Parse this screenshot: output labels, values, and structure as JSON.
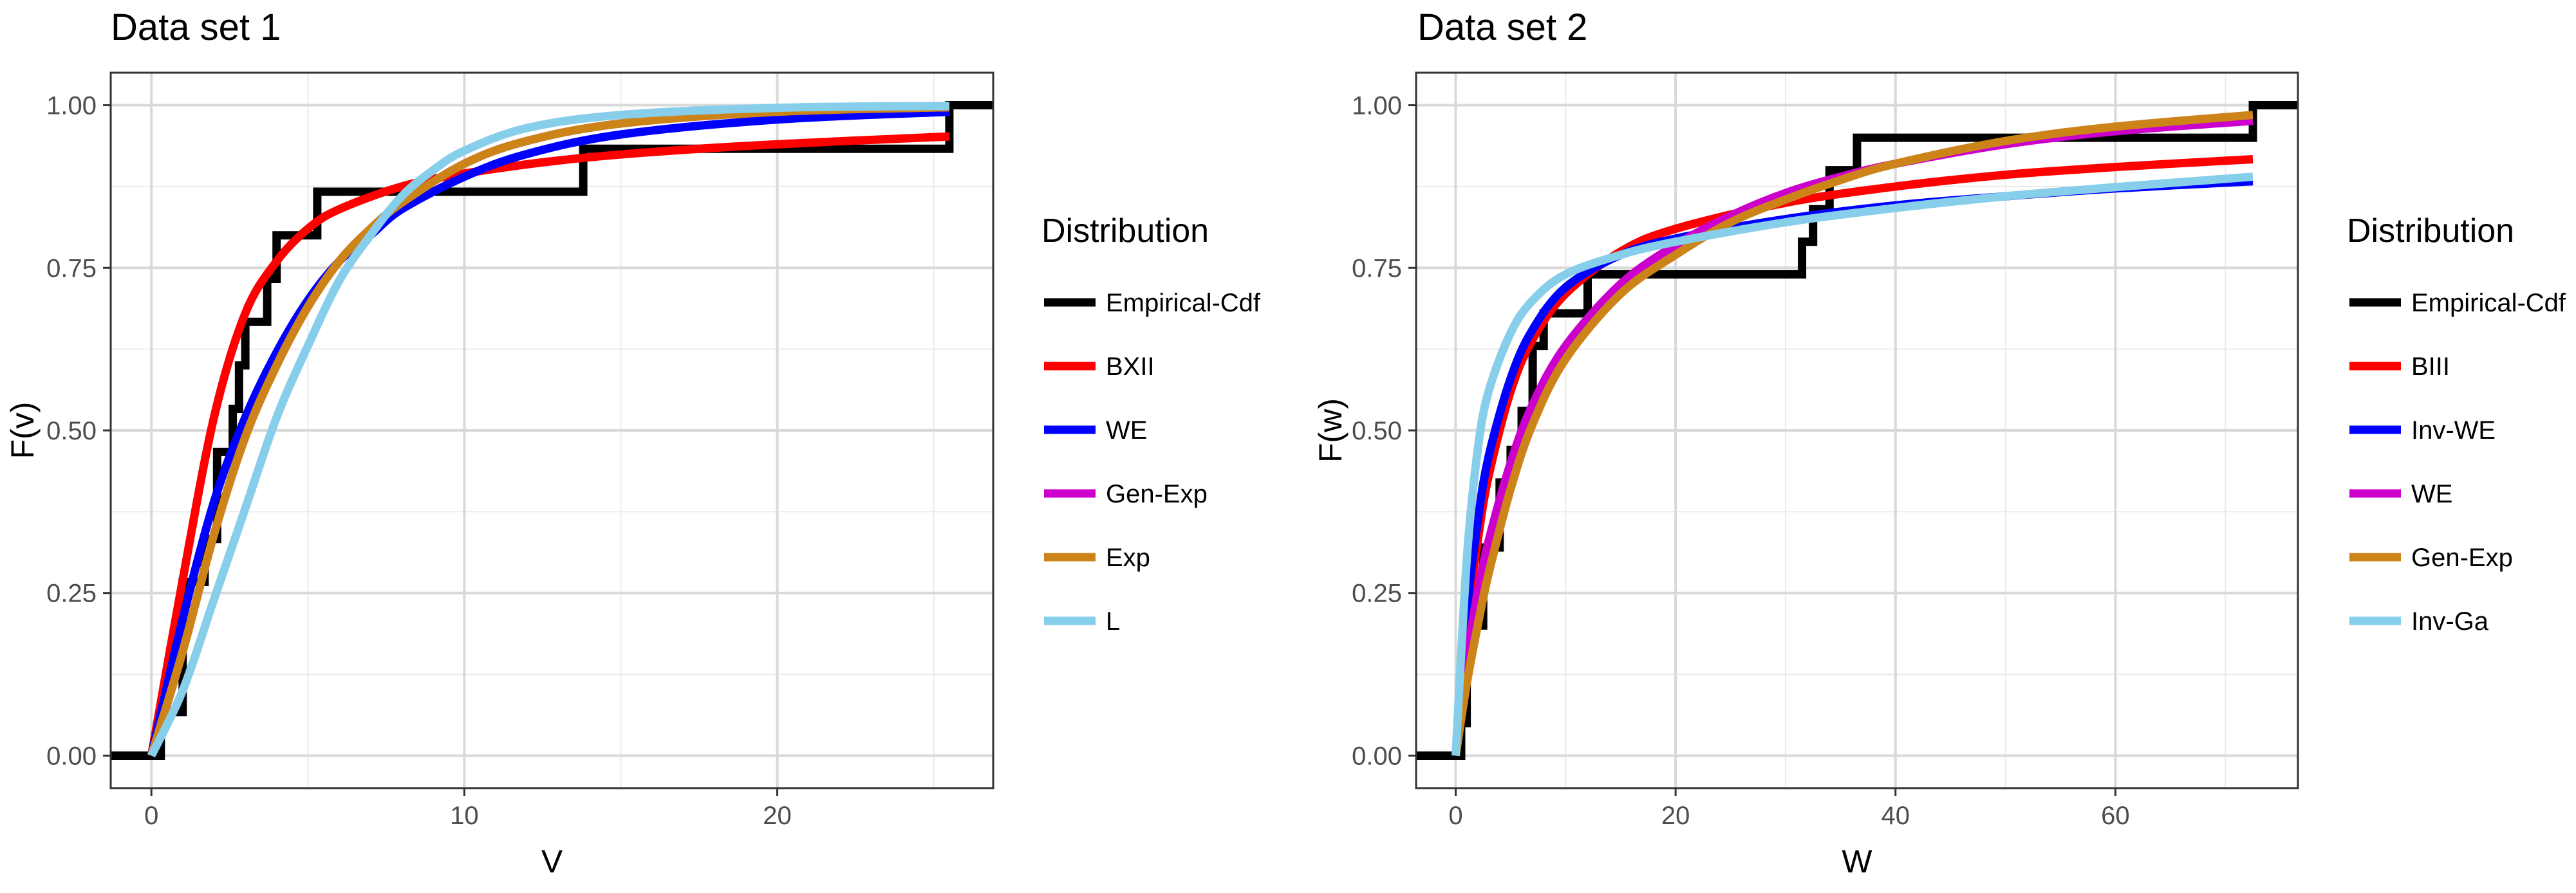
{
  "colors": {
    "Empirical-Cdf": "#000000",
    "red": "#ff0000",
    "blue": "#0000ff",
    "magenta": "#cc00cc",
    "orange": "#cc8419",
    "skyblue": "#87ceeb"
  },
  "chart_data": [
    {
      "type": "line",
      "title": "Data set 1",
      "xlabel": "V",
      "ylabel": "F(v)",
      "xlim": [
        -1.3,
        26.9
      ],
      "ylim": [
        -0.05,
        1.05
      ],
      "xticks": [
        0,
        10,
        20
      ],
      "yticks": [
        "0.00",
        "0.25",
        "0.50",
        "0.75",
        "1.00"
      ],
      "grid": true,
      "legend_title": "Distribution",
      "legend_position": "right",
      "empirical_steps": [
        [
          -1.3,
          0.0
        ],
        [
          0.3,
          0.0
        ],
        [
          0.3,
          0.067
        ],
        [
          1.0,
          0.067
        ],
        [
          1.0,
          0.267
        ],
        [
          1.7,
          0.267
        ],
        [
          1.7,
          0.333
        ],
        [
          2.1,
          0.333
        ],
        [
          2.1,
          0.467
        ],
        [
          2.6,
          0.467
        ],
        [
          2.6,
          0.533
        ],
        [
          2.8,
          0.533
        ],
        [
          2.8,
          0.6
        ],
        [
          3.0,
          0.6
        ],
        [
          3.0,
          0.667
        ],
        [
          3.7,
          0.667
        ],
        [
          3.7,
          0.733
        ],
        [
          4.0,
          0.733
        ],
        [
          4.0,
          0.8
        ],
        [
          5.3,
          0.8
        ],
        [
          5.3,
          0.867
        ],
        [
          13.8,
          0.867
        ],
        [
          13.8,
          0.933
        ],
        [
          25.5,
          0.933
        ],
        [
          25.5,
          1.0
        ],
        [
          26.9,
          1.0
        ]
      ],
      "series": [
        {
          "name": "Empirical-Cdf",
          "color": "#000000",
          "x": [],
          "y": []
        },
        {
          "name": "BXII",
          "color": "#ff0000",
          "x": [
            0,
            1,
            2,
            3,
            4,
            5,
            6,
            8,
            10,
            13,
            16,
            20,
            25.5
          ],
          "y": [
            0,
            0.27,
            0.52,
            0.68,
            0.76,
            0.81,
            0.84,
            0.875,
            0.895,
            0.915,
            0.928,
            0.94,
            0.952
          ]
        },
        {
          "name": "WE",
          "color": "#0000ff",
          "x": [
            0,
            1,
            2,
            3,
            4,
            5,
            6,
            7,
            8,
            10,
            12,
            15,
            20,
            25.5
          ],
          "y": [
            0,
            0.21,
            0.39,
            0.52,
            0.62,
            0.7,
            0.76,
            0.8,
            0.84,
            0.89,
            0.925,
            0.955,
            0.978,
            0.99
          ]
        },
        {
          "name": "Gen-Exp",
          "color": "#cc00cc",
          "x": [
            0,
            1,
            2,
            3,
            4,
            5,
            6,
            7,
            8,
            10,
            12,
            15,
            20,
            25.5
          ],
          "y": [
            0,
            0.16,
            0.34,
            0.49,
            0.6,
            0.69,
            0.76,
            0.81,
            0.85,
            0.91,
            0.945,
            0.972,
            0.99,
            0.997
          ]
        },
        {
          "name": "Exp",
          "color": "#cc8419",
          "x": [
            0,
            1,
            2,
            3,
            4,
            5,
            6,
            7,
            8,
            10,
            12,
            15,
            20,
            25.5
          ],
          "y": [
            0,
            0.16,
            0.34,
            0.49,
            0.6,
            0.69,
            0.76,
            0.81,
            0.85,
            0.91,
            0.945,
            0.972,
            0.99,
            0.997
          ]
        },
        {
          "name": "L",
          "color": "#87ceeb",
          "x": [
            0,
            1,
            2,
            3,
            4,
            5,
            6,
            7,
            8,
            9,
            10,
            12,
            15,
            20,
            25.5
          ],
          "y": [
            0,
            0.1,
            0.24,
            0.38,
            0.52,
            0.63,
            0.73,
            0.8,
            0.86,
            0.9,
            0.93,
            0.965,
            0.985,
            0.996,
            0.999
          ]
        }
      ]
    },
    {
      "type": "line",
      "title": "Data set 2",
      "xlabel": "W",
      "ylabel": "F(w)",
      "xlim": [
        -3.6,
        76.6
      ],
      "ylim": [
        -0.05,
        1.05
      ],
      "xticks": [
        0,
        20,
        40,
        60
      ],
      "yticks": [
        "0.00",
        "0.25",
        "0.50",
        "0.75",
        "1.00"
      ],
      "grid": true,
      "legend_title": "Distribution",
      "legend_position": "right",
      "empirical_steps": [
        [
          -3.6,
          0.0
        ],
        [
          0.5,
          0.0
        ],
        [
          0.5,
          0.05
        ],
        [
          1.0,
          0.05
        ],
        [
          1.0,
          0.2
        ],
        [
          2.5,
          0.2
        ],
        [
          2.5,
          0.32
        ],
        [
          4.0,
          0.32
        ],
        [
          4.0,
          0.42
        ],
        [
          5.0,
          0.42
        ],
        [
          5.0,
          0.47
        ],
        [
          6.0,
          0.47
        ],
        [
          6.0,
          0.53
        ],
        [
          7.0,
          0.53
        ],
        [
          7.0,
          0.63
        ],
        [
          8.0,
          0.63
        ],
        [
          8.0,
          0.68
        ],
        [
          12.0,
          0.68
        ],
        [
          12.0,
          0.74
        ],
        [
          31.5,
          0.74
        ],
        [
          31.5,
          0.79
        ],
        [
          32.5,
          0.79
        ],
        [
          32.5,
          0.84
        ],
        [
          34.0,
          0.84
        ],
        [
          34.0,
          0.9
        ],
        [
          36.5,
          0.9
        ],
        [
          36.5,
          0.95
        ],
        [
          72.5,
          0.95
        ],
        [
          72.5,
          1.0
        ],
        [
          76.6,
          1.0
        ]
      ],
      "series": [
        {
          "name": "Empirical-Cdf",
          "color": "#000000",
          "x": [],
          "y": []
        },
        {
          "name": "BIII",
          "color": "#ff0000",
          "x": [
            0,
            1,
            2,
            3,
            5,
            7,
            10,
            15,
            20,
            30,
            40,
            50,
            60,
            72.5
          ],
          "y": [
            0,
            0.2,
            0.33,
            0.43,
            0.56,
            0.64,
            0.71,
            0.775,
            0.81,
            0.85,
            0.875,
            0.893,
            0.905,
            0.917
          ]
        },
        {
          "name": "Inv-WE",
          "color": "#0000ff",
          "x": [
            0,
            1,
            2,
            3,
            5,
            7,
            10,
            15,
            20,
            30,
            40,
            50,
            60,
            72.5
          ],
          "y": [
            0,
            0.22,
            0.36,
            0.46,
            0.58,
            0.655,
            0.72,
            0.77,
            0.795,
            0.825,
            0.846,
            0.86,
            0.872,
            0.883
          ]
        },
        {
          "name": "WE",
          "color": "#cc00cc",
          "x": [
            0,
            1,
            2,
            3,
            5,
            7,
            10,
            15,
            20,
            25,
            30,
            35,
            40,
            50,
            60,
            72.5
          ],
          "y": [
            0,
            0.15,
            0.25,
            0.33,
            0.45,
            0.54,
            0.63,
            0.725,
            0.785,
            0.83,
            0.865,
            0.89,
            0.91,
            0.94,
            0.96,
            0.976
          ]
        },
        {
          "name": "Gen-Exp",
          "color": "#cc8419",
          "x": [
            0,
            1,
            2,
            3,
            5,
            7,
            10,
            15,
            20,
            25,
            30,
            35,
            40,
            50,
            60,
            72.5
          ],
          "y": [
            0,
            0.11,
            0.2,
            0.28,
            0.41,
            0.51,
            0.61,
            0.71,
            0.77,
            0.82,
            0.855,
            0.885,
            0.91,
            0.945,
            0.967,
            0.985
          ]
        },
        {
          "name": "Inv-Ga",
          "color": "#87ceeb",
          "x": [
            0,
            1,
            2,
            3,
            5,
            7,
            10,
            15,
            20,
            30,
            40,
            50,
            60,
            72.5
          ],
          "y": [
            0,
            0.3,
            0.47,
            0.56,
            0.65,
            0.7,
            0.74,
            0.77,
            0.79,
            0.82,
            0.842,
            0.86,
            0.874,
            0.89
          ]
        }
      ]
    }
  ]
}
